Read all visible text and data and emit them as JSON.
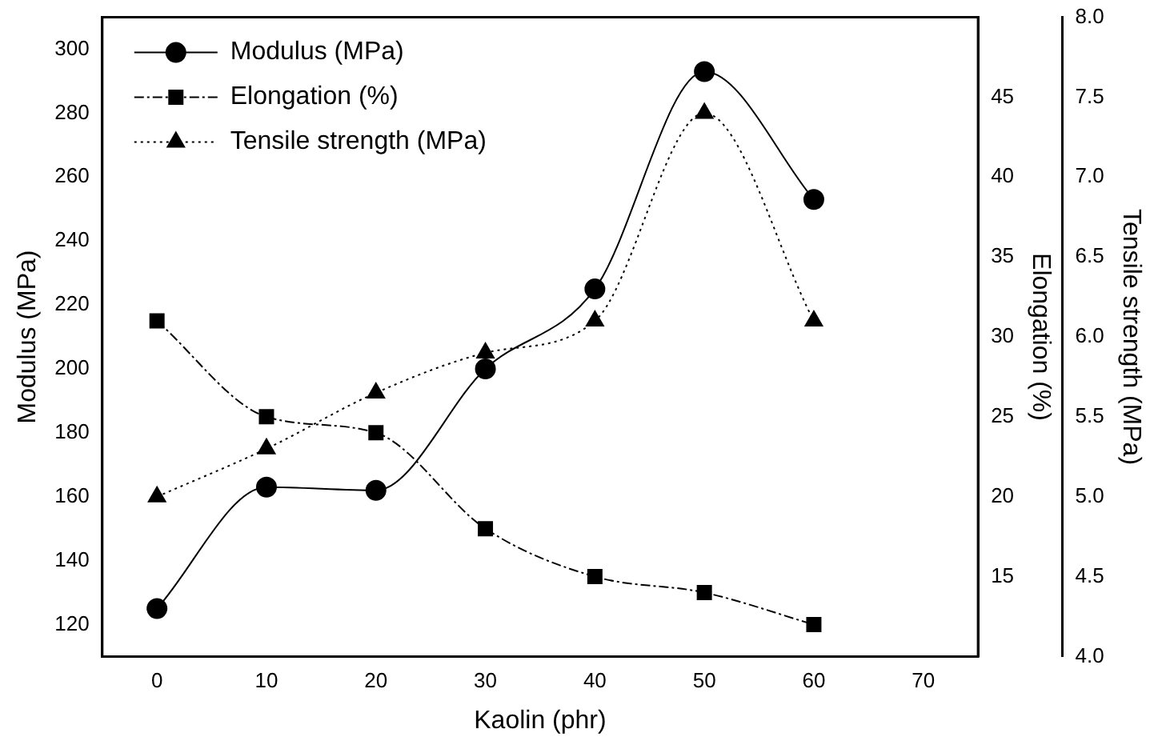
{
  "chart_data": {
    "type": "line",
    "xlabel": "Kaolin (phr)",
    "ylabel": "Modulus (MPa)",
    "y2label": "Elongation (%)",
    "y3label": "Tensile strength (MPa)",
    "x": [
      0,
      10,
      20,
      30,
      40,
      50,
      60
    ],
    "series": [
      {
        "name": "Modulus (MPa)",
        "color": "#000000",
        "marker": "circle",
        "line_style": "solid",
        "values": [
          125,
          163,
          162,
          200,
          225,
          293,
          253
        ]
      },
      {
        "name": "Elongation (%)",
        "color": "#000000",
        "marker": "square",
        "line_style": "dashdot",
        "axis": "y2",
        "values": [
          31,
          25,
          24,
          18,
          15,
          14,
          12
        ]
      },
      {
        "name": "Tensile strength (MPa)",
        "color": "#000000",
        "marker": "triangle",
        "line_style": "dotted",
        "axis": "y3",
        "values": [
          5.0,
          5.3,
          5.65,
          5.9,
          6.1,
          7.4,
          6.1
        ]
      }
    ],
    "xlim": [
      -5,
      75
    ],
    "xticks": [
      0,
      10,
      20,
      30,
      40,
      50,
      60,
      70
    ],
    "ylim": [
      110,
      310
    ],
    "yticks": [
      120,
      140,
      160,
      180,
      200,
      220,
      240,
      260,
      280,
      300
    ],
    "y2lim": [
      10,
      50
    ],
    "y2ticks": [
      15,
      20,
      25,
      30,
      35,
      40,
      45
    ],
    "y3lim": [
      4,
      8
    ],
    "y3ticks": [
      {
        "value": 4,
        "label": "4.0"
      },
      {
        "value": 4.5,
        "label": "4.5"
      },
      {
        "value": 5,
        "label": "5.0"
      },
      {
        "value": 5.5,
        "label": "5.5"
      },
      {
        "value": 6,
        "label": "6.0"
      },
      {
        "value": 6.5,
        "label": "6.5"
      },
      {
        "value": 7,
        "label": "7.0"
      },
      {
        "value": 7.5,
        "label": "7.5"
      },
      {
        "value": 8,
        "label": "8.0"
      }
    ],
    "grid": false,
    "legend": "top left"
  }
}
